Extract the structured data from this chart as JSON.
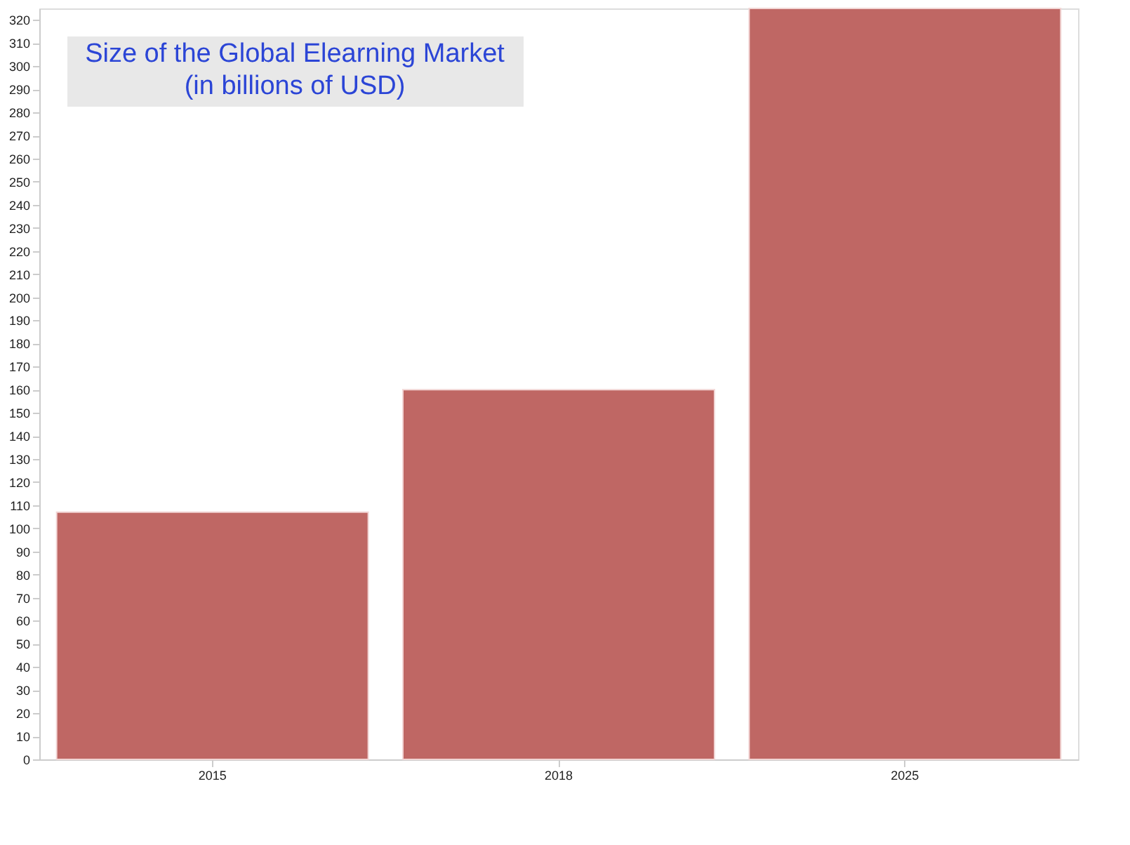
{
  "chart_data": {
    "type": "bar",
    "title": [
      "Size of the Global Elearning Market",
      "(in billions of USD)"
    ],
    "categories": [
      "2015",
      "2018",
      "2025"
    ],
    "values": [
      107,
      160,
      325
    ],
    "color": "#bf6764",
    "ylim": [
      0,
      325
    ],
    "yticks": [
      0,
      10,
      20,
      30,
      40,
      50,
      60,
      70,
      80,
      90,
      100,
      110,
      120,
      130,
      140,
      150,
      160,
      170,
      180,
      190,
      200,
      210,
      220,
      230,
      240,
      250,
      260,
      270,
      280,
      290,
      300,
      310,
      320
    ],
    "grid": false
  }
}
